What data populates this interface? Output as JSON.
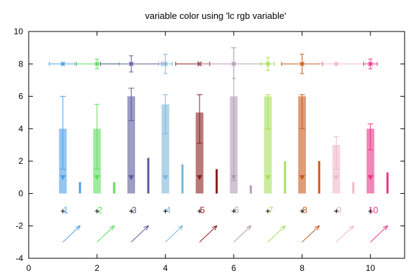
{
  "chart_data": {
    "type": "bar",
    "title": "variable color using 'lc rgb variable'",
    "xlabel": "",
    "ylabel": "",
    "xlim": [
      0,
      11
    ],
    "ylim": [
      -4,
      10
    ],
    "xticks": [
      0,
      2,
      4,
      6,
      8,
      10
    ],
    "xtick_labels": [
      "0",
      "2",
      "4",
      "6",
      "8",
      "10"
    ],
    "yticks": [
      -4,
      -2,
      0,
      2,
      4,
      6,
      8,
      10
    ],
    "ytick_labels": [
      "-4",
      "-2",
      "0",
      "2",
      "4",
      "6",
      "8",
      "10"
    ],
    "grid": false,
    "colors": [
      "#4f9fe8",
      "#5fdd5f",
      "#5a5a9c",
      "#7ab8d8",
      "#8b2020",
      "#b39bb3",
      "#a6e05a",
      "#c85a1e",
      "#f0b8c8",
      "#e8358a"
    ],
    "point_labels": [
      "1",
      "2",
      "3",
      "4",
      "5",
      "6",
      "7",
      "8",
      "9",
      "10"
    ],
    "points": [
      {
        "x": 1,
        "bar": 4,
        "err_low": 1.5,
        "err_high": 6.0,
        "small_bar": 0.7,
        "xerr_low": 0.6,
        "xerr_high": 1.4,
        "yerr_low": 8.0,
        "yerr_high": 8.0
      },
      {
        "x": 2,
        "bar": 4,
        "err_low": 1.5,
        "err_high": 5.5,
        "small_bar": 0.7,
        "xerr_low": 1.35,
        "xerr_high": 2.65,
        "yerr_low": 7.7,
        "yerr_high": 8.3
      },
      {
        "x": 3,
        "bar": 6,
        "err_low": 4.5,
        "err_high": 6.5,
        "small_bar": 2.2,
        "xerr_low": 2.1,
        "xerr_high": 3.9,
        "yerr_low": 7.5,
        "yerr_high": 8.5
      },
      {
        "x": 4,
        "bar": 5.5,
        "err_low": 3.7,
        "err_high": 6.1,
        "small_bar": 1.8,
        "xerr_low": 3.8,
        "xerr_high": 4.2,
        "yerr_low": 7.4,
        "yerr_high": 8.6
      },
      {
        "x": 5,
        "bar": 5,
        "err_low": 3.1,
        "err_high": 6.1,
        "small_bar": 1.5,
        "xerr_low": 4.3,
        "xerr_high": 5.3,
        "yerr_low": 8.0,
        "yerr_high": 8.0
      },
      {
        "x": 6,
        "bar": 6,
        "err_low": 0.8,
        "err_high": 9.0,
        "small_bar": 0.5,
        "xerr_low": 5.0,
        "xerr_high": 7.0,
        "yerr_low": 7.1,
        "yerr_high": 9.0
      },
      {
        "x": 7,
        "bar": 6,
        "err_low": 4.0,
        "err_high": 6.1,
        "small_bar": 2.0,
        "xerr_low": 6.8,
        "xerr_high": 7.2,
        "yerr_low": 7.6,
        "yerr_high": 8.4
      },
      {
        "x": 8,
        "bar": 6,
        "err_low": 4.0,
        "err_high": 6.1,
        "small_bar": 2.0,
        "xerr_low": 7.4,
        "xerr_high": 8.6,
        "yerr_low": 7.4,
        "yerr_high": 8.6
      },
      {
        "x": 9,
        "bar": 3,
        "err_low": 1.5,
        "err_high": 3.5,
        "small_bar": 0.7,
        "xerr_low": 8.5,
        "xerr_high": 9.8,
        "yerr_low": 8.0,
        "yerr_high": 8.0
      },
      {
        "x": 10,
        "bar": 4,
        "err_low": 2.7,
        "err_high": 4.3,
        "small_bar": 1.3,
        "xerr_low": 9.8,
        "xerr_high": 10.2,
        "yerr_low": 7.7,
        "yerr_high": 8.3
      }
    ],
    "arrows": [
      {
        "x1": 1,
        "y1": -3,
        "x2": 1.5,
        "y2": -2
      },
      {
        "x1": 2,
        "y1": -3,
        "x2": 2.5,
        "y2": -2
      },
      {
        "x1": 3,
        "y1": -3,
        "x2": 3.5,
        "y2": -2
      },
      {
        "x1": 4,
        "y1": -3,
        "x2": 4.5,
        "y2": -2
      },
      {
        "x1": 5,
        "y1": -3,
        "x2": 5.5,
        "y2": -2
      },
      {
        "x1": 6,
        "y1": -3,
        "x2": 6.5,
        "y2": -2
      },
      {
        "x1": 7,
        "y1": -3,
        "x2": 7.5,
        "y2": -2
      },
      {
        "x1": 8,
        "y1": -3,
        "x2": 8.5,
        "y2": -2
      },
      {
        "x1": 9,
        "y1": -3,
        "x2": 9.5,
        "y2": -2
      },
      {
        "x1": 10,
        "y1": -3,
        "x2": 10.5,
        "y2": -2
      }
    ]
  }
}
